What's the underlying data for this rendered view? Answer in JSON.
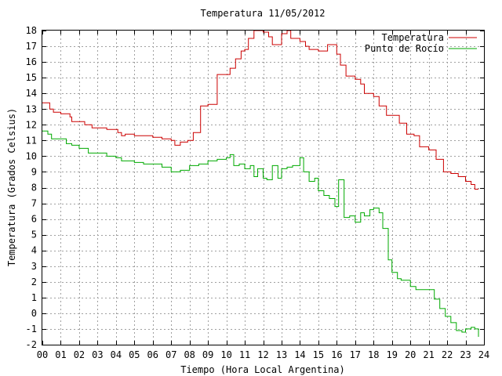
{
  "chart_data": {
    "type": "line",
    "title": "Temperatura 11/05/2012",
    "xlabel": "Tiempo (Hora Local Argentina)",
    "ylabel": "Temperatura (Grados Celsius)",
    "xlim": [
      0,
      24
    ],
    "ylim": [
      -2,
      18
    ],
    "x_ticks": [
      0,
      1,
      2,
      3,
      4,
      5,
      6,
      7,
      8,
      9,
      10,
      11,
      12,
      13,
      14,
      15,
      16,
      17,
      18,
      19,
      20,
      21,
      22,
      23,
      24
    ],
    "x_tick_labels": [
      "00",
      "01",
      "02",
      "03",
      "04",
      "05",
      "06",
      "07",
      "08",
      "09",
      "10",
      "11",
      "12",
      "13",
      "14",
      "15",
      "16",
      "17",
      "18",
      "19",
      "20",
      "21",
      "22",
      "23",
      "24"
    ],
    "y_ticks": [
      -2,
      -1,
      0,
      1,
      2,
      3,
      4,
      5,
      6,
      7,
      8,
      9,
      10,
      11,
      12,
      13,
      14,
      15,
      16,
      17,
      18
    ],
    "y_tick_labels": [
      "-2",
      "-1",
      "0",
      "1",
      "2",
      "3",
      "4",
      "5",
      "6",
      "7",
      "8",
      "9",
      "10",
      "11",
      "12",
      "13",
      "14",
      "15",
      "16",
      "17",
      "18"
    ],
    "grid": true,
    "legend_position": "top-right",
    "series": [
      {
        "name": "Temperatura",
        "color": "#cc0000",
        "x": [
          0,
          0.4,
          0.6,
          1.0,
          1.5,
          1.6,
          2.0,
          2.3,
          2.7,
          3.0,
          3.5,
          4.0,
          4.1,
          4.3,
          4.5,
          5.0,
          5.3,
          6.0,
          6.5,
          7.0,
          7.2,
          7.5,
          7.9,
          8.2,
          8.6,
          9.0,
          9.5,
          9.9,
          10.2,
          10.5,
          10.8,
          11.0,
          11.2,
          11.5,
          11.8,
          12.0,
          12.3,
          12.5,
          12.8,
          13.0,
          13.3,
          13.5,
          14.0,
          14.3,
          14.5,
          15.0,
          15.5,
          15.8,
          16.0,
          16.2,
          16.5,
          17.0,
          17.3,
          17.5,
          18.0,
          18.3,
          18.7,
          19.0,
          19.4,
          19.8,
          20.2,
          20.5,
          21.0,
          21.4,
          21.8,
          22.2,
          22.6,
          23.0,
          23.3,
          23.5,
          23.7
        ],
        "values": [
          13.4,
          13.0,
          12.8,
          12.7,
          12.5,
          12.2,
          12.2,
          12.0,
          11.8,
          11.8,
          11.7,
          11.7,
          11.5,
          11.3,
          11.4,
          11.3,
          11.3,
          11.2,
          11.1,
          11.0,
          10.7,
          10.9,
          11.0,
          11.5,
          13.2,
          13.3,
          15.2,
          15.2,
          15.6,
          16.2,
          16.7,
          16.8,
          17.5,
          18.0,
          18.0,
          17.9,
          17.6,
          17.1,
          17.1,
          17.8,
          18.0,
          17.5,
          17.3,
          17.0,
          16.8,
          16.7,
          17.1,
          17.1,
          16.5,
          15.8,
          15.1,
          14.9,
          14.6,
          14.0,
          13.8,
          13.2,
          12.6,
          12.6,
          12.1,
          11.4,
          11.3,
          10.6,
          10.4,
          9.8,
          9.0,
          8.9,
          8.7,
          8.4,
          8.2,
          7.9,
          7.9
        ]
      },
      {
        "name": "Punto de Rocío",
        "color": "#00aa00",
        "x": [
          0,
          0.3,
          0.5,
          1.0,
          1.3,
          1.6,
          2.0,
          2.5,
          3.0,
          3.5,
          4.0,
          4.3,
          5.0,
          5.5,
          6.0,
          6.5,
          7.0,
          7.5,
          8.0,
          8.5,
          9.0,
          9.5,
          10.0,
          10.2,
          10.4,
          10.7,
          11.0,
          11.3,
          11.5,
          11.7,
          12.0,
          12.2,
          12.5,
          12.8,
          13.0,
          13.3,
          13.6,
          14.0,
          14.2,
          14.5,
          14.8,
          15.0,
          15.3,
          15.6,
          15.9,
          16.1,
          16.4,
          16.7,
          17.0,
          17.3,
          17.5,
          17.8,
          18.0,
          18.3,
          18.5,
          18.8,
          19.0,
          19.3,
          19.5,
          19.8,
          20.0,
          20.3,
          20.6,
          21.0,
          21.3,
          21.6,
          21.9,
          22.2,
          22.5,
          22.8,
          23.0,
          23.3,
          23.5,
          23.7
        ],
        "values": [
          11.6,
          11.4,
          11.1,
          11.1,
          10.8,
          10.7,
          10.5,
          10.2,
          10.2,
          10.0,
          9.9,
          9.7,
          9.6,
          9.5,
          9.5,
          9.3,
          9.0,
          9.1,
          9.4,
          9.5,
          9.7,
          9.8,
          9.9,
          10.1,
          9.4,
          9.5,
          9.2,
          9.4,
          8.7,
          9.2,
          8.6,
          8.5,
          9.4,
          8.6,
          9.2,
          9.3,
          9.4,
          9.9,
          9.0,
          8.4,
          8.6,
          7.8,
          7.5,
          7.3,
          6.8,
          8.5,
          6.1,
          6.2,
          5.8,
          6.4,
          6.2,
          6.6,
          6.7,
          6.4,
          5.4,
          3.4,
          2.6,
          2.2,
          2.1,
          2.1,
          1.7,
          1.5,
          1.5,
          1.5,
          0.9,
          0.3,
          -0.2,
          -0.6,
          -1.1,
          -1.2,
          -1.0,
          -0.9,
          -1.0,
          -1.5
        ]
      }
    ]
  }
}
